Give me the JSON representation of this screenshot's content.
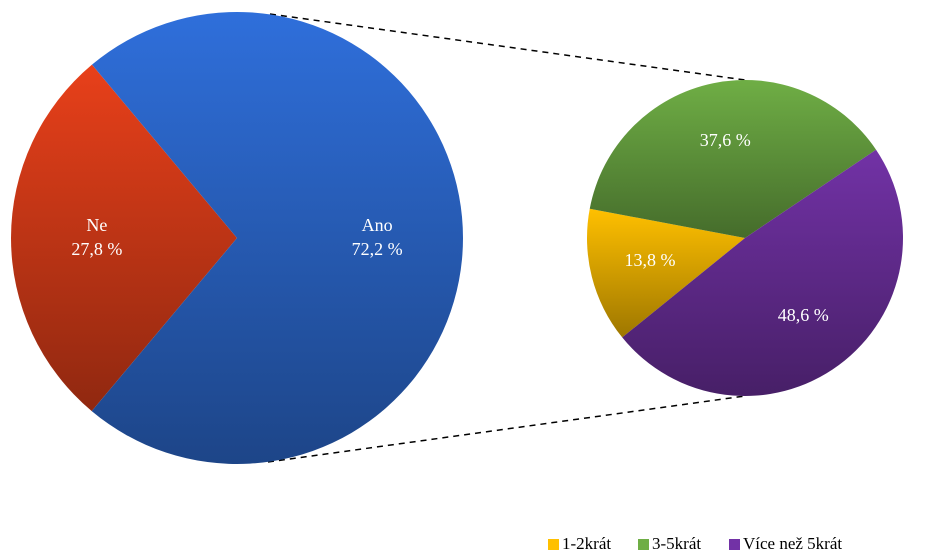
{
  "chart_data": [
    {
      "type": "pie",
      "categories": [
        "Ne",
        "Ano"
      ],
      "values": [
        27.8,
        72.2
      ],
      "value_labels": [
        "27,8 %",
        "72,2 %"
      ],
      "colors": [
        "#e8401a",
        "#2f6fdb"
      ]
    },
    {
      "type": "pie",
      "categories": [
        "1-2krát",
        "3-5krát",
        "Více než 5krát"
      ],
      "values": [
        13.8,
        37.6,
        48.6
      ],
      "value_labels": [
        "13,8 %",
        "37,6 %",
        "48,6 %"
      ],
      "colors": [
        "#ffc000",
        "#6fae45",
        "#7232a6"
      ],
      "legend": "bottom-right"
    }
  ]
}
